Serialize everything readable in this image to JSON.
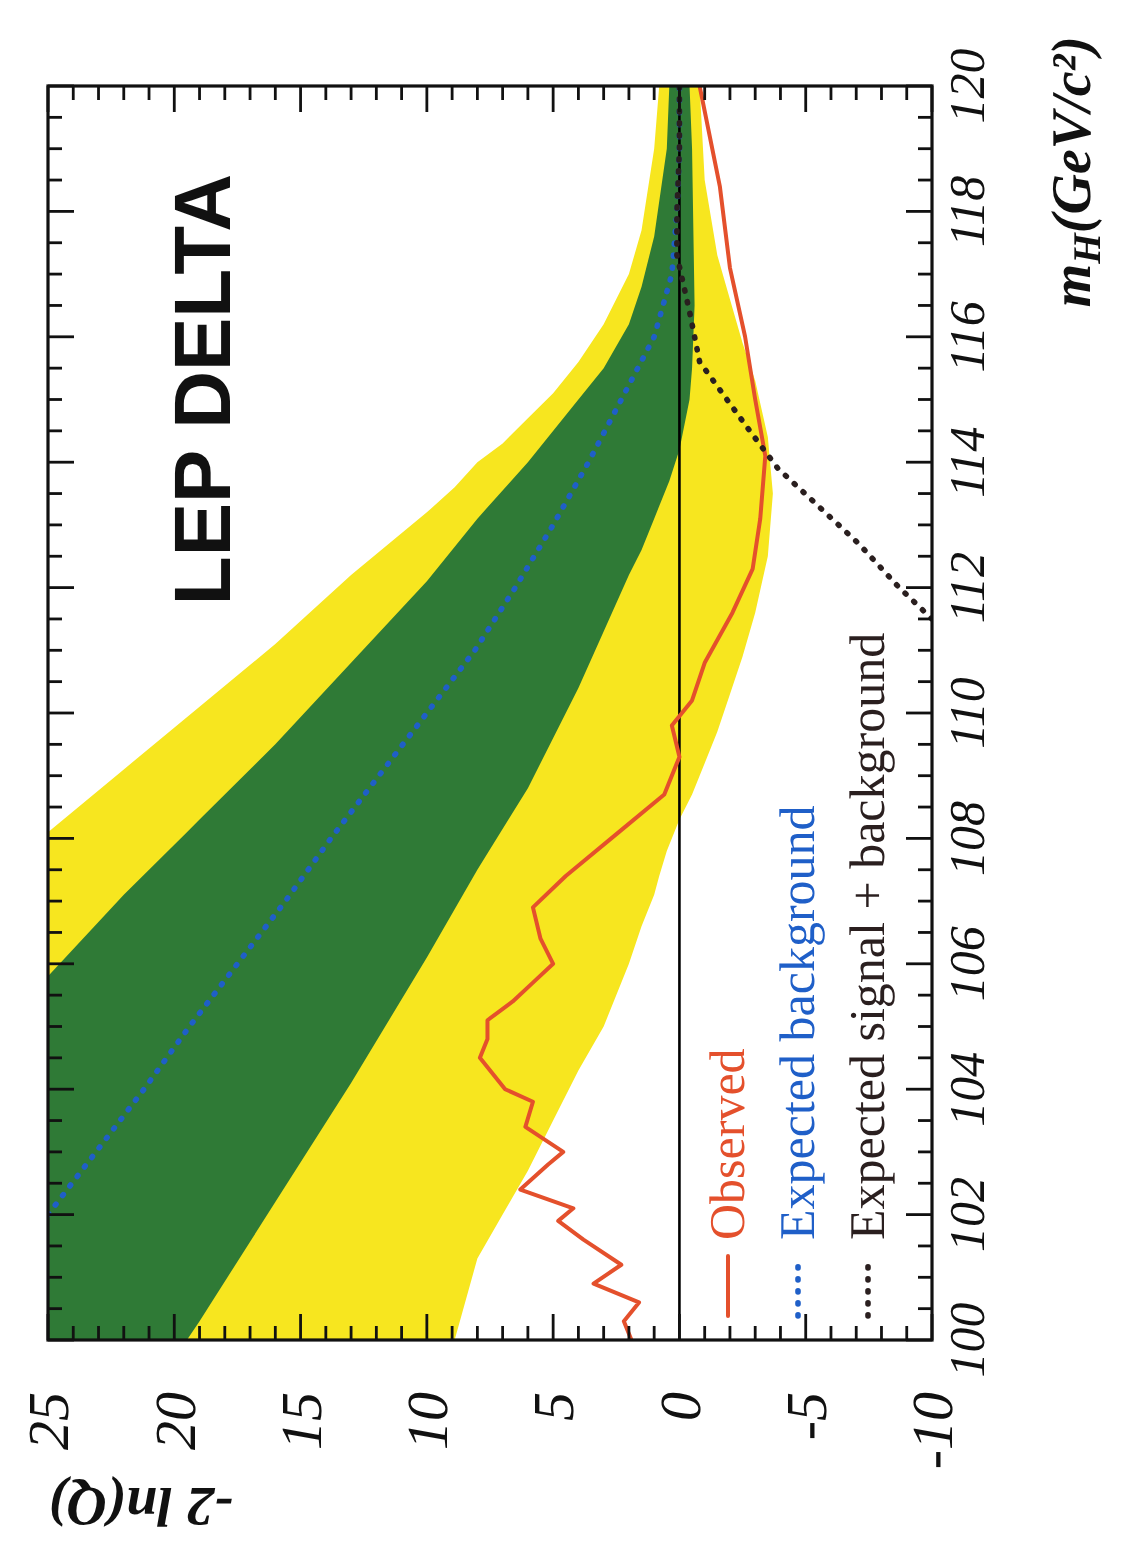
{
  "chart_data": {
    "type": "line",
    "title": "LEP DELTA",
    "xlabel": "-2 ln(Q)",
    "ylabel": "m$_{H}$(GeV/c²)",
    "xlim": [
      25,
      -10
    ],
    "ylim": [
      100,
      120
    ],
    "xticks": [
      25,
      {
        "value": 24,
        "label": null
      },
      {
        "value": 23,
        "label": null
      },
      {
        "value": 22,
        "label": null
      },
      {
        "value": 21,
        "label": null
      },
      20,
      {
        "value": 19,
        "label": null
      },
      {
        "value": 18,
        "label": null
      },
      {
        "value": 17,
        "label": null
      },
      {
        "value": 16,
        "label": null
      },
      15,
      {
        "value": 14,
        "label": null
      },
      {
        "value": 13,
        "label": null
      },
      {
        "value": 12,
        "label": null
      },
      {
        "value": 11,
        "label": null
      },
      10,
      {
        "value": 9,
        "label": null
      },
      {
        "value": 8,
        "label": null
      },
      {
        "value": 7,
        "label": null
      },
      {
        "value": 6,
        "label": null
      },
      5,
      {
        "value": 4,
        "label": null
      },
      {
        "value": 3,
        "label": null
      },
      {
        "value": 2,
        "label": null
      },
      {
        "value": 1,
        "label": null
      },
      0,
      {
        "value": -1,
        "label": null
      },
      {
        "value": -2,
        "label": null
      },
      {
        "value": -3,
        "label": null
      },
      {
        "value": -4,
        "label": null
      },
      -5,
      {
        "value": -6,
        "label": null
      },
      {
        "value": -7,
        "label": null
      },
      {
        "value": -8,
        "label": null
      },
      {
        "value": -9,
        "label": null
      },
      -10
    ],
    "yticks": [
      100,
      {
        "value": 100.5,
        "label": null
      },
      {
        "value": 101,
        "label": null
      },
      {
        "value": 101.5,
        "label": null
      },
      102,
      {
        "value": 102.5,
        "label": null
      },
      {
        "value": 103,
        "label": null
      },
      {
        "value": 103.5,
        "label": null
      },
      104,
      {
        "value": 104.5,
        "label": null
      },
      {
        "value": 105,
        "label": null
      },
      {
        "value": 105.5,
        "label": null
      },
      106,
      {
        "value": 106.5,
        "label": null
      },
      {
        "value": 107,
        "label": null
      },
      {
        "value": 107.5,
        "label": null
      },
      108,
      {
        "value": 108.5,
        "label": null
      },
      {
        "value": 109,
        "label": null
      },
      {
        "value": 109.5,
        "label": null
      },
      110,
      {
        "value": 110.5,
        "label": null
      },
      {
        "value": 111,
        "label": null
      },
      {
        "value": 111.5,
        "label": null
      },
      112,
      {
        "value": 112.5,
        "label": null
      },
      {
        "value": 113,
        "label": null
      },
      {
        "value": 113.5,
        "label": null
      },
      114,
      {
        "value": 114.5,
        "label": null
      },
      {
        "value": 115,
        "label": null
      },
      {
        "value": 115.5,
        "label": null
      },
      116,
      {
        "value": 116.5,
        "label": null
      },
      {
        "value": 117,
        "label": null
      },
      {
        "value": 117.5,
        "label": null
      },
      118,
      {
        "value": 118.5,
        "label": null
      },
      {
        "value": 119,
        "label": null
      },
      {
        "value": 119.5,
        "label": null
      },
      120
    ],
    "legend": "bottom right",
    "ref_lines": [
      {
        "axis": "x",
        "value": 0,
        "color": "#000000"
      }
    ],
    "series": [
      {
        "color": "#f7e61f",
        "x": [
          25,
          22,
          19,
          16,
          13,
          10,
          8.9,
          8,
          7,
          6,
          5,
          4,
          3,
          2,
          1.5,
          1,
          0.8,
          0.5,
          0,
          -0.5,
          -0.8,
          -1,
          -1.5,
          -2,
          -2.5,
          -3,
          -3.5,
          -3.7
        ],
        "values": [
          null,
          null,
          null,
          null,
          null,
          null,
          null,
          null,
          null,
          null,
          null,
          null,
          null,
          null,
          null,
          null,
          null,
          null,
          null,
          null,
          null,
          null,
          null,
          null,
          null,
          null,
          null,
          null
        ],
        "lower": [
          100,
          100,
          100,
          100,
          100,
          100,
          100,
          101.3,
          102.0,
          102.7,
          103.5,
          104.3,
          105.0,
          106.0,
          106.6,
          107.1,
          107.4,
          107.8,
          108.3,
          108.7,
          109.0,
          109.2,
          109.7,
          110.3,
          110.9,
          111.6,
          112.5,
          113.5
        ],
        "upper": [
          108.1,
          109.1,
          110.1,
          111.1,
          112.2,
          113.2,
          113.6,
          114.0,
          114.3,
          114.7,
          115.1,
          115.6,
          116.2,
          117.0,
          117.7,
          119.0,
          120,
          120,
          120,
          120,
          120,
          118.5,
          117.3,
          116.6,
          115.9,
          115.3,
          114.4,
          113.5
        ]
      },
      {
        "color": "#2f7a36",
        "x": [
          25,
          22,
          19.5,
          19,
          16,
          13,
          10,
          8,
          6,
          4,
          3,
          2,
          1.5,
          1,
          0.5,
          0.4,
          0,
          -0.4,
          -0.5,
          -0.6
        ],
        "values": [
          null,
          null,
          null,
          null,
          null,
          null,
          null,
          null,
          null,
          null,
          null,
          null,
          null,
          null,
          null,
          null,
          null,
          null,
          null,
          null
        ],
        "lower": [
          100,
          100,
          100,
          100.3,
          102.2,
          104.1,
          106.1,
          107.5,
          108.8,
          110.4,
          111.3,
          112.2,
          112.6,
          113.1,
          113.6,
          113.7,
          114.2,
          115.0,
          115.5,
          116.5
        ],
        "upper": [
          105.8,
          107.1,
          108.1,
          108.3,
          109.5,
          110.8,
          112.1,
          113.1,
          114.0,
          115.0,
          115.5,
          116.2,
          116.8,
          117.6,
          119.0,
          120,
          120,
          120,
          119.0,
          116.5
        ]
      },
      {
        "name": "Observed",
        "color": "#e4502c",
        "line_style": "solid",
        "x": [
          1.9,
          2.2,
          1.6,
          3.4,
          2.3,
          3.8,
          4.8,
          4.2,
          6.3,
          5.2,
          4.6,
          6.1,
          5.8,
          6.9,
          7.9,
          7.6,
          7.6,
          6.6,
          5.8,
          5.0,
          5.5,
          5.8,
          4.5,
          2.4,
          0.6,
          0.0,
          0.3,
          -0.5,
          -1.0,
          -2.1,
          -2.9,
          -3.2,
          -3.4,
          -3.0,
          -2.6,
          -2.0,
          -1.6,
          -0.8
        ],
        "values": [
          100,
          100.3,
          100.6,
          100.9,
          101.2,
          101.6,
          101.9,
          102.1,
          102.4,
          102.8,
          103.0,
          103.4,
          103.8,
          104.0,
          104.5,
          104.8,
          105.1,
          105.4,
          105.7,
          106.0,
          106.4,
          106.9,
          107.4,
          108.1,
          108.7,
          109.3,
          109.8,
          110.2,
          110.8,
          111.6,
          112.3,
          113.1,
          114.1,
          115.0,
          116.0,
          117.1,
          118.4,
          120
        ]
      },
      {
        "name": "Expected background",
        "color": "#1f5fc8",
        "line_style": "dotted",
        "x": [
          25,
          23.1,
          21.2,
          19.4,
          17.5,
          15.6,
          13.8,
          11.9,
          10.0,
          8.1,
          6.5,
          5.0,
          3.6,
          2.3,
          1.0,
          0.3,
          0.1,
          0.0,
          0.0
        ],
        "values": [
          102,
          103,
          104,
          105,
          106,
          107,
          108,
          109,
          110,
          111,
          112,
          113,
          114,
          115,
          116,
          117,
          118,
          119,
          120
        ]
      },
      {
        "name": "Expected signal + background",
        "color": "#2a1f1f",
        "line_style": "dotted",
        "x": [
          -10,
          -8.7,
          -7.1,
          -5.5,
          -3.9,
          -2.6,
          -0.8,
          -0.4,
          0.1,
          0.1,
          0.0,
          0.0
        ],
        "values": [
          111.5,
          112.0,
          112.7,
          113.3,
          113.9,
          114.6,
          115.6,
          116.4,
          117.3,
          118,
          119,
          120
        ]
      }
    ]
  }
}
